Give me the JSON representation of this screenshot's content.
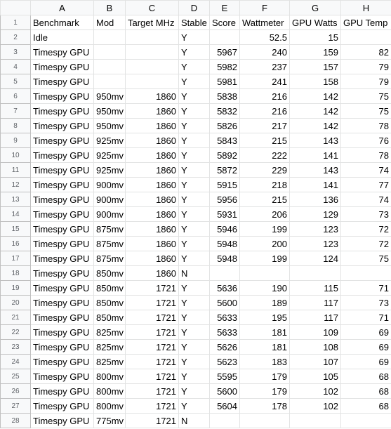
{
  "columns": [
    "A",
    "B",
    "C",
    "D",
    "E",
    "F",
    "G",
    "H"
  ],
  "rows": [
    {
      "n": "1",
      "cells": [
        "Benchmark",
        "Mod",
        "Target MHz",
        "Stable",
        "Score",
        "Wattmeter",
        "GPU Watts",
        "GPU Temp"
      ]
    },
    {
      "n": "2",
      "cells": [
        "Idle",
        "",
        "",
        "Y",
        "",
        "52.5",
        "15",
        ""
      ]
    },
    {
      "n": "3",
      "cells": [
        "Timespy GPU",
        "",
        "",
        "Y",
        "5967",
        "240",
        "159",
        "82"
      ]
    },
    {
      "n": "4",
      "cells": [
        "Timespy GPU",
        "",
        "",
        "Y",
        "5982",
        "237",
        "157",
        "79"
      ]
    },
    {
      "n": "5",
      "cells": [
        "Timespy GPU",
        "",
        "",
        "Y",
        "5981",
        "241",
        "158",
        "79"
      ]
    },
    {
      "n": "6",
      "cells": [
        "Timespy GPU",
        "950mv",
        "1860",
        "Y",
        "5838",
        "216",
        "142",
        "75"
      ]
    },
    {
      "n": "7",
      "cells": [
        "Timespy GPU",
        "950mv",
        "1860",
        "Y",
        "5832",
        "216",
        "142",
        "75"
      ]
    },
    {
      "n": "8",
      "cells": [
        "Timespy GPU",
        "950mv",
        "1860",
        "Y",
        "5826",
        "217",
        "142",
        "78"
      ]
    },
    {
      "n": "9",
      "cells": [
        "Timespy GPU",
        "925mv",
        "1860",
        "Y",
        "5843",
        "215",
        "143",
        "76"
      ]
    },
    {
      "n": "10",
      "cells": [
        "Timespy GPU",
        "925mv",
        "1860",
        "Y",
        "5892",
        "222",
        "141",
        "78"
      ]
    },
    {
      "n": "11",
      "cells": [
        "Timespy GPU",
        "925mv",
        "1860",
        "Y",
        "5872",
        "229",
        "143",
        "74"
      ]
    },
    {
      "n": "12",
      "cells": [
        "Timespy GPU",
        "900mv",
        "1860",
        "Y",
        "5915",
        "218",
        "141",
        "77"
      ]
    },
    {
      "n": "13",
      "cells": [
        "Timespy GPU",
        "900mv",
        "1860",
        "Y",
        "5956",
        "215",
        "136",
        "74"
      ]
    },
    {
      "n": "14",
      "cells": [
        "Timespy GPU",
        "900mv",
        "1860",
        "Y",
        "5931",
        "206",
        "129",
        "73"
      ]
    },
    {
      "n": "15",
      "cells": [
        "Timespy GPU",
        "875mv",
        "1860",
        "Y",
        "5946",
        "199",
        "123",
        "72"
      ]
    },
    {
      "n": "16",
      "cells": [
        "Timespy GPU",
        "875mv",
        "1860",
        "Y",
        "5948",
        "200",
        "123",
        "72"
      ]
    },
    {
      "n": "17",
      "cells": [
        "Timespy GPU",
        "875mv",
        "1860",
        "Y",
        "5948",
        "199",
        "124",
        "75"
      ]
    },
    {
      "n": "18",
      "cells": [
        "Timespy GPU",
        "850mv",
        "1860",
        "N",
        "",
        "",
        "",
        ""
      ]
    },
    {
      "n": "19",
      "cells": [
        "Timespy GPU",
        "850mv",
        "1721",
        "Y",
        "5636",
        "190",
        "115",
        "71"
      ]
    },
    {
      "n": "20",
      "cells": [
        "Timespy GPU",
        "850mv",
        "1721",
        "Y",
        "5600",
        "189",
        "117",
        "73"
      ]
    },
    {
      "n": "21",
      "cells": [
        "Timespy GPU",
        "850mv",
        "1721",
        "Y",
        "5633",
        "195",
        "117",
        "71"
      ]
    },
    {
      "n": "22",
      "cells": [
        "Timespy GPU",
        "825mv",
        "1721",
        "Y",
        "5633",
        "181",
        "109",
        "69"
      ]
    },
    {
      "n": "23",
      "cells": [
        "Timespy GPU",
        "825mv",
        "1721",
        "Y",
        "5626",
        "181",
        "108",
        "69"
      ]
    },
    {
      "n": "24",
      "cells": [
        "Timespy GPU",
        "825mv",
        "1721",
        "Y",
        "5623",
        "183",
        "107",
        "69"
      ]
    },
    {
      "n": "25",
      "cells": [
        "Timespy GPU",
        "800mv",
        "1721",
        "Y",
        "5595",
        "179",
        "105",
        "68"
      ]
    },
    {
      "n": "26",
      "cells": [
        "Timespy GPU",
        "800mv",
        "1721",
        "Y",
        "5600",
        "179",
        "102",
        "68"
      ]
    },
    {
      "n": "27",
      "cells": [
        "Timespy GPU",
        "800mv",
        "1721",
        "Y",
        "5604",
        "178",
        "102",
        "68"
      ]
    },
    {
      "n": "28",
      "cells": [
        "Timespy GPU",
        "775mv",
        "1721",
        "N",
        "",
        "",
        "",
        ""
      ]
    }
  ]
}
